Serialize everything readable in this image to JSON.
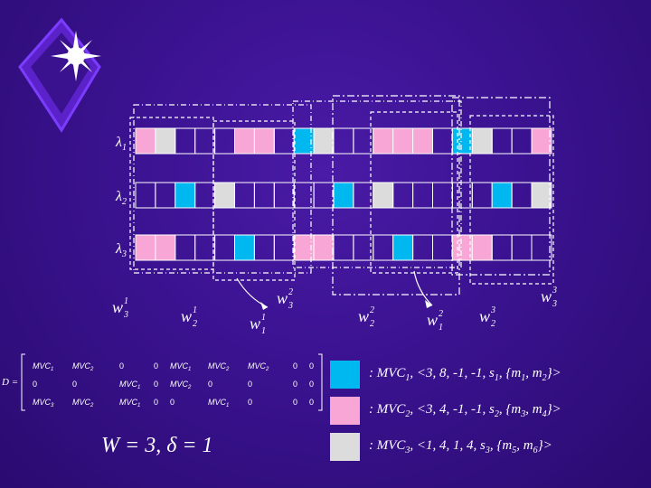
{
  "rows": [
    {
      "label": "λ",
      "sub": "1"
    },
    {
      "label": "λ",
      "sub": "2"
    },
    {
      "label": "λ",
      "sub": "3"
    }
  ],
  "grid": {
    "lambda1": [
      "pink",
      "gray",
      "",
      "",
      "",
      "pink",
      "pink",
      "",
      "blue",
      "gray",
      "",
      "",
      "pink",
      "pink",
      "pink",
      "",
      "blue",
      "gray",
      "",
      "",
      "pink"
    ],
    "lambda2": [
      "",
      "",
      "blue",
      "",
      "gray",
      "",
      "",
      "",
      "",
      "",
      "blue",
      "",
      "gray",
      "",
      "",
      "",
      "",
      "",
      "blue",
      "",
      "gray"
    ],
    "lambda3": [
      "pink",
      "pink",
      "",
      "",
      "",
      "blue",
      "",
      "",
      "pink",
      "pink",
      "",
      "",
      "",
      "blue",
      "",
      "",
      "pink",
      "pink",
      "",
      "",
      ""
    ]
  },
  "windows": {
    "w3_1": {
      "base": "w",
      "sub": "3",
      "sup": "1"
    },
    "w2_1": {
      "base": "w",
      "sub": "2",
      "sup": "1"
    },
    "w1_1": {
      "base": "w",
      "sub": "1",
      "sup": "1"
    },
    "w3_2": {
      "base": "w",
      "sub": "3",
      "sup": "2"
    },
    "w2_2": {
      "base": "w",
      "sub": "2",
      "sup": "2"
    },
    "w1_2": {
      "base": "w",
      "sub": "1",
      "sup": "2"
    },
    "w2_3": {
      "base": "w",
      "sub": "2",
      "sup": "3"
    },
    "w3_3": {
      "base": "w",
      "sub": "3",
      "sup": "3"
    }
  },
  "matrix": {
    "prefix": "D =",
    "rows": [
      [
        "MVC1",
        "MVC2",
        "0",
        "0",
        "MVC1",
        "MVC2",
        "MVC2",
        "0"
      ],
      [
        "0",
        "0",
        "MVC1",
        "0",
        "MVC2",
        "0",
        "0",
        "0"
      ],
      [
        "MVC3",
        "MVC2",
        "MVC1",
        "0",
        "0",
        "MVC1",
        "0",
        "0"
      ]
    ]
  },
  "equation": {
    "text": "W = 3,  δ = 1"
  },
  "legend": [
    {
      "color": "#00b8f0",
      "name": "MVC",
      "sub": "1",
      "tuple": ", <3, 8, -1, -1, ",
      "s": "s",
      "s_sub": "1",
      "m": "{m",
      "m_a": "1",
      "m_b": "2"
    },
    {
      "color": "#f7a6d6",
      "name": "MVC",
      "sub": "2",
      "tuple": ", <3, 4, -1, -1, ",
      "s": "s",
      "s_sub": "2",
      "m": "{m",
      "m_a": "3",
      "m_b": "4"
    },
    {
      "color": "#dcdcdc",
      "name": "MVC",
      "sub": "3",
      "tuple": ", <1, 4, 1, 4, ",
      "s": "s",
      "s_sub": "3",
      "m": "{m",
      "m_a": "5",
      "m_b": "6"
    }
  ],
  "colors": {
    "blue": "#00b8f0",
    "pink": "#f7a6d6",
    "gray": "#dcdcdc",
    "line": "#ffffff"
  }
}
